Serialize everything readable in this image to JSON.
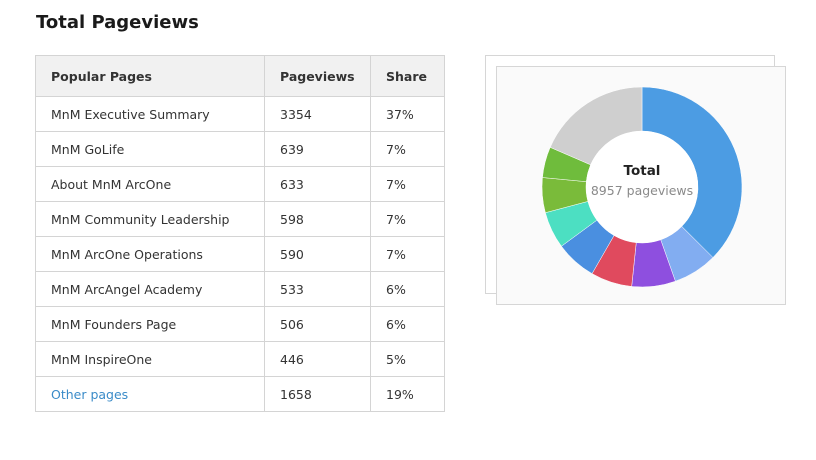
{
  "page_title": "Total Pageviews",
  "table": {
    "headers": [
      "Popular Pages",
      "Pageviews",
      "Share"
    ],
    "rows": [
      {
        "page": "MnM Executive Summary",
        "views": "3354",
        "share": "37%"
      },
      {
        "page": "MnM GoLife",
        "views": "639",
        "share": "7%"
      },
      {
        "page": "About MnM ArcOne",
        "views": "633",
        "share": "7%"
      },
      {
        "page": "MnM Community Leadership",
        "views": "598",
        "share": "7%"
      },
      {
        "page": "MnM ArcOne Operations",
        "views": "590",
        "share": "7%"
      },
      {
        "page": "MnM ArcAngel Academy",
        "views": "533",
        "share": "6%"
      },
      {
        "page": "MnM Founders Page",
        "views": "506",
        "share": "6%"
      },
      {
        "page": "MnM InspireOne",
        "views": "446",
        "share": "5%"
      },
      {
        "page": "Other pages",
        "views": "1658",
        "share": "19%",
        "link": true
      }
    ]
  },
  "donut": {
    "center_title": "Total",
    "center_subtitle": "8957 pageviews"
  },
  "chart_data": {
    "type": "pie",
    "categories": [
      "MnM Executive Summary",
      "MnM GoLife",
      "About MnM ArcOne",
      "MnM Community Leadership",
      "MnM ArcOne Operations",
      "MnM ArcAngel Academy",
      "MnM Founders Page",
      "MnM InspireOne",
      "Other pages"
    ],
    "values": [
      3354,
      639,
      633,
      598,
      590,
      533,
      506,
      446,
      1658
    ],
    "colors": [
      "#4c9ce3",
      "#82adf1",
      "#8e4fdf",
      "#e04a5e",
      "#4a8fe0",
      "#4cdfc2",
      "#7abb3a",
      "#6fbc3c",
      "#cfcfcf"
    ],
    "title": "",
    "total_label": "Total",
    "total_sublabel": "8957 pageviews"
  }
}
